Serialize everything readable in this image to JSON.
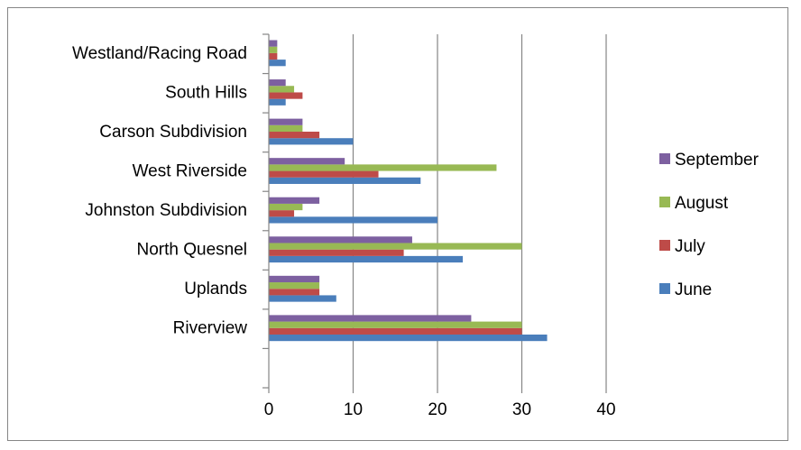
{
  "chart_data": {
    "type": "bar",
    "orientation": "horizontal",
    "categories": [
      "Riverview",
      "Uplands",
      "North Quesnel",
      "Johnston Subdivision",
      "West Riverside",
      "Carson Subdivision",
      "South Hills",
      "Westland/Racing Road"
    ],
    "series": [
      {
        "name": "June",
        "color": "#4a7ebb",
        "values": [
          33,
          8,
          23,
          20,
          18,
          10,
          2,
          2
        ]
      },
      {
        "name": "July",
        "color": "#be4b48",
        "values": [
          30,
          6,
          16,
          3,
          13,
          6,
          4,
          1
        ]
      },
      {
        "name": "August",
        "color": "#98b954",
        "values": [
          30,
          6,
          30,
          4,
          27,
          4,
          3,
          1
        ]
      },
      {
        "name": "September",
        "color": "#7d60a0",
        "values": [
          24,
          6,
          17,
          6,
          9,
          4,
          2,
          1
        ]
      }
    ],
    "xlim": [
      0,
      40
    ],
    "xticks": [
      "0",
      "10",
      "20",
      "30",
      "40"
    ],
    "grid": true,
    "legend_position": "right",
    "legend_order": [
      "September",
      "August",
      "July",
      "June"
    ]
  }
}
